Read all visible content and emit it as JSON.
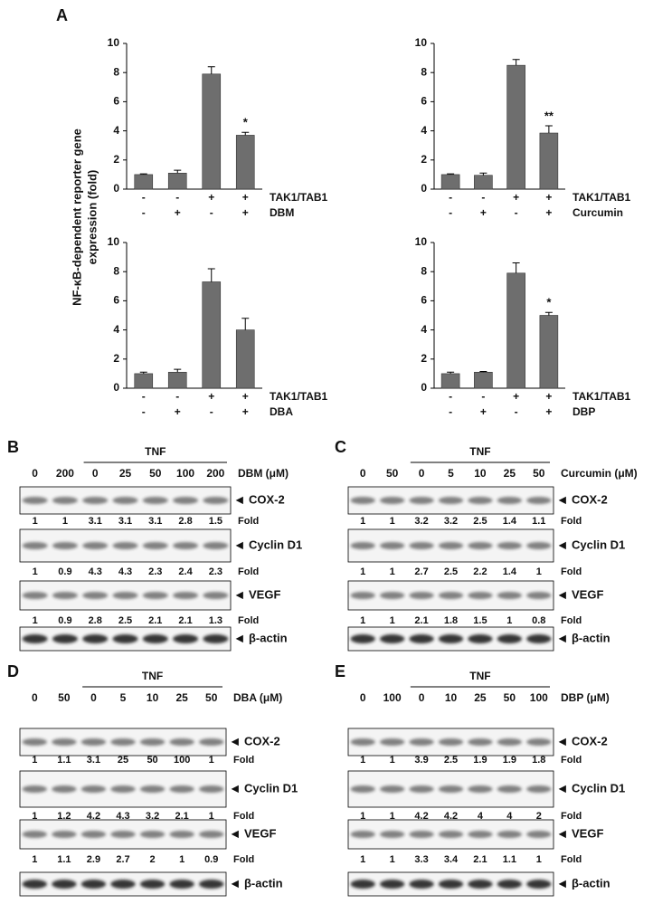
{
  "panel_a": {
    "label": "A",
    "ylabel": [
      "NF-κB-dependent reporter gene",
      "expression (fold)"
    ]
  },
  "chart_data": [
    {
      "type": "bar",
      "color": "#6e6e6e",
      "values": [
        1,
        1.1,
        7.9,
        3.7
      ],
      "errors": [
        0.05,
        0.2,
        0.5,
        0.2
      ],
      "ylim": [
        0,
        10
      ],
      "yticks": [
        0,
        2,
        4,
        6,
        8,
        10
      ],
      "conditions": [
        {
          "name": "TAK1/TAB1",
          "signs": [
            "-",
            "-",
            "+",
            "+"
          ]
        },
        {
          "name": "DBM",
          "signs": [
            "-",
            "+",
            "-",
            "+"
          ]
        }
      ],
      "annotations": [
        {
          "index": 3,
          "text": "*"
        }
      ]
    },
    {
      "type": "bar",
      "color": "#6e6e6e",
      "values": [
        1,
        0.95,
        8.5,
        3.85
      ],
      "errors": [
        0.05,
        0.15,
        0.4,
        0.5
      ],
      "ylim": [
        0,
        10
      ],
      "yticks": [
        0,
        2,
        4,
        6,
        8,
        10
      ],
      "conditions": [
        {
          "name": "TAK1/TAB1",
          "signs": [
            "-",
            "-",
            "+",
            "+"
          ]
        },
        {
          "name": "Curcumin",
          "signs": [
            "-",
            "+",
            "-",
            "+"
          ]
        }
      ],
      "annotations": [
        {
          "index": 3,
          "text": "**"
        }
      ]
    },
    {
      "type": "bar",
      "color": "#6e6e6e",
      "values": [
        1,
        1.1,
        7.3,
        4.0
      ],
      "errors": [
        0.1,
        0.2,
        0.9,
        0.8
      ],
      "ylim": [
        0,
        10
      ],
      "yticks": [
        0,
        2,
        4,
        6,
        8,
        10
      ],
      "conditions": [
        {
          "name": "TAK1/TAB1",
          "signs": [
            "-",
            "-",
            "+",
            "+"
          ]
        },
        {
          "name": "DBA",
          "signs": [
            "-",
            "+",
            "-",
            "+"
          ]
        }
      ],
      "annotations": []
    },
    {
      "type": "bar",
      "color": "#6e6e6e",
      "values": [
        1,
        1.1,
        7.9,
        5.0
      ],
      "errors": [
        0.1,
        0.05,
        0.7,
        0.2
      ],
      "ylim": [
        0,
        10
      ],
      "yticks": [
        0,
        2,
        4,
        6,
        8,
        10
      ],
      "conditions": [
        {
          "name": "TAK1/TAB1",
          "signs": [
            "-",
            "-",
            "+",
            "+"
          ]
        },
        {
          "name": "DBP",
          "signs": [
            "-",
            "+",
            "-",
            "+"
          ]
        }
      ],
      "annotations": [
        {
          "index": 3,
          "text": "*"
        }
      ]
    }
  ],
  "blots": [
    {
      "label": "B",
      "treatment": "TNF",
      "doses": [
        0,
        200,
        0,
        25,
        50,
        100,
        200
      ],
      "dose_label": "DBM (μM)",
      "fold_label": "Fold",
      "bands": [
        {
          "name": "COX-2",
          "fold": [
            1,
            1,
            3.1,
            3.1,
            3.1,
            2.8,
            1.5
          ]
        },
        {
          "name": "Cyclin D1",
          "fold": [
            1,
            0.9,
            4.3,
            4.3,
            2.3,
            2.4,
            2.3
          ]
        },
        {
          "name": "VEGF",
          "fold": [
            1,
            0.9,
            2.8,
            2.5,
            2.1,
            2.1,
            1.3
          ]
        },
        {
          "name": "β-actin"
        }
      ]
    },
    {
      "label": "C",
      "treatment": "TNF",
      "doses": [
        0,
        50,
        0,
        5,
        10,
        25,
        50
      ],
      "dose_label": "Curcumin (μM)",
      "fold_label": "Fold",
      "bands": [
        {
          "name": "COX-2",
          "fold": [
            1,
            1,
            3.2,
            3.2,
            2.5,
            1.4,
            1.1
          ]
        },
        {
          "name": "Cyclin D1",
          "fold": [
            1,
            1,
            2.7,
            2.5,
            2.2,
            1.4,
            1
          ]
        },
        {
          "name": "VEGF",
          "fold": [
            1,
            1,
            2.1,
            1.8,
            1.5,
            1,
            0.8
          ]
        },
        {
          "name": "β-actin"
        }
      ]
    },
    {
      "label": "D",
      "treatment": "TNF",
      "doses": [
        0,
        50,
        0,
        5,
        10,
        25,
        50
      ],
      "dose_label": "DBA (μM)",
      "fold_label": "Fold",
      "bands": [
        {
          "name": "COX-2",
          "fold": [
            1,
            1.1,
            3.1,
            25,
            50,
            100,
            1
          ]
        },
        {
          "name": "Cyclin D1",
          "fold": [
            1,
            1.2,
            4.2,
            4.3,
            3.2,
            2.1,
            1
          ]
        },
        {
          "name": "VEGF",
          "fold": [
            1,
            1.1,
            2.9,
            2.7,
            2,
            1,
            0.9
          ]
        },
        {
          "name": "β-actin"
        }
      ]
    },
    {
      "label": "E",
      "treatment": "TNF",
      "doses": [
        0,
        100,
        0,
        10,
        25,
        50,
        100
      ],
      "dose_label": "DBP (μM)",
      "fold_label": "Fold",
      "bands": [
        {
          "name": "COX-2",
          "fold": [
            1,
            1,
            3.9,
            2.5,
            1.9,
            1.9,
            1.8
          ]
        },
        {
          "name": "Cyclin D1",
          "fold": [
            1,
            1,
            4.2,
            4.2,
            4,
            4,
            2
          ]
        },
        {
          "name": "VEGF",
          "fold": [
            1,
            1,
            3.3,
            3.4,
            2.1,
            1.1,
            1
          ]
        },
        {
          "name": "β-actin"
        }
      ]
    }
  ]
}
